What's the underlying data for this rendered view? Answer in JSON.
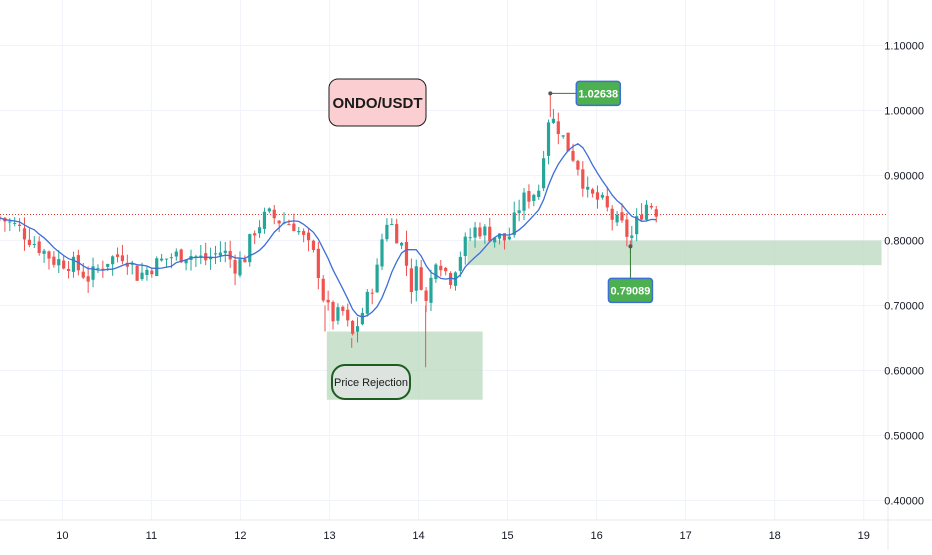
{
  "chart_data": {
    "type": "candlestick",
    "title": "ONDO/USDT",
    "x_ticks": [
      "10",
      "11",
      "12",
      "13",
      "14",
      "15",
      "16",
      "17",
      "18",
      "19"
    ],
    "y_ticks": [
      "0.40000",
      "0.50000",
      "0.60000",
      "0.70000",
      "0.80000",
      "0.90000",
      "1.00000",
      "1.10000"
    ],
    "ylim": [
      0.37,
      1.17
    ],
    "xlim": [
      9.3,
      19.25
    ],
    "grid": true,
    "price_line": 0.84,
    "annotations": {
      "high_label": "1.02638",
      "high_value": 1.02638,
      "high_x": 15.48,
      "low_label": "0.79089",
      "low_value": 0.79089,
      "low_x": 16.38,
      "rejection_label": "Price Rejection"
    },
    "zones": [
      {
        "x": [
          12.97,
          14.72
        ],
        "y": [
          0.555,
          0.66
        ],
        "color": "#b9d8bd"
      },
      {
        "x": [
          14.55,
          19.2
        ],
        "y": [
          0.762,
          0.8
        ],
        "color": "#b9d8bd"
      }
    ],
    "candle_color_up": "#26a69a",
    "candle_color_down": "#ef5350",
    "ma_color": "#3d6fd6",
    "close_path": [
      [
        9.3,
        0.835
      ],
      [
        9.5,
        0.82
      ],
      [
        9.7,
        0.795
      ],
      [
        9.9,
        0.77
      ],
      [
        10.1,
        0.765
      ],
      [
        10.3,
        0.742
      ],
      [
        10.5,
        0.77
      ],
      [
        10.7,
        0.78
      ],
      [
        10.85,
        0.745
      ],
      [
        11.0,
        0.76
      ],
      [
        11.2,
        0.775
      ],
      [
        11.4,
        0.78
      ],
      [
        11.6,
        0.77
      ],
      [
        11.8,
        0.785
      ],
      [
        11.95,
        0.76
      ],
      [
        12.05,
        0.775
      ],
      [
        12.15,
        0.815
      ],
      [
        12.3,
        0.84
      ],
      [
        12.45,
        0.83
      ],
      [
        12.6,
        0.825
      ],
      [
        12.72,
        0.8
      ],
      [
        12.85,
        0.77
      ],
      [
        12.95,
        0.7
      ],
      [
        13.05,
        0.68
      ],
      [
        13.15,
        0.69
      ],
      [
        13.25,
        0.65
      ],
      [
        13.4,
        0.7
      ],
      [
        13.55,
        0.76
      ],
      [
        13.62,
        0.835
      ],
      [
        13.72,
        0.82
      ],
      [
        13.82,
        0.79
      ],
      [
        13.92,
        0.73
      ],
      [
        14.0,
        0.76
      ],
      [
        14.08,
        0.7
      ],
      [
        14.2,
        0.78
      ],
      [
        14.35,
        0.74
      ],
      [
        14.5,
        0.79
      ],
      [
        14.65,
        0.82
      ],
      [
        14.8,
        0.81
      ],
      [
        15.0,
        0.8
      ],
      [
        15.15,
        0.86
      ],
      [
        15.25,
        0.87
      ],
      [
        15.35,
        0.88
      ],
      [
        15.45,
        0.99
      ],
      [
        15.55,
        0.98
      ],
      [
        15.65,
        0.95
      ],
      [
        15.78,
        0.92
      ],
      [
        15.9,
        0.87
      ],
      [
        16.05,
        0.86
      ],
      [
        16.2,
        0.83
      ],
      [
        16.3,
        0.82
      ],
      [
        16.38,
        0.8
      ],
      [
        16.48,
        0.84
      ],
      [
        16.58,
        0.86
      ],
      [
        16.68,
        0.845
      ]
    ]
  }
}
